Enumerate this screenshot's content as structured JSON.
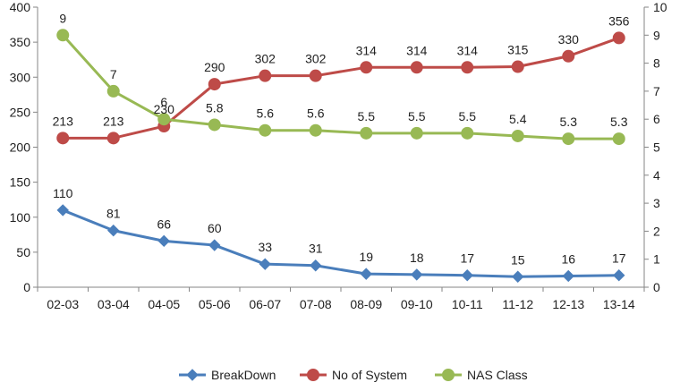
{
  "chart_data": {
    "type": "line",
    "title": "",
    "xlabel": "",
    "ylabel": "",
    "y2label": "",
    "categories": [
      "02-03",
      "03-04",
      "04-05",
      "05-06",
      "06-07",
      "07-08",
      "08-09",
      "09-10",
      "10-11",
      "11-12",
      "12-13",
      "13-14"
    ],
    "ylim": [
      0,
      400
    ],
    "yticks": [
      0,
      50,
      100,
      150,
      200,
      250,
      300,
      350,
      400
    ],
    "y2lim": [
      0,
      10
    ],
    "y2ticks": [
      0,
      1,
      2,
      3,
      4,
      5,
      6,
      7,
      8,
      9,
      10
    ],
    "grid": false,
    "legend_position": "bottom",
    "series": [
      {
        "name": "BreakDown",
        "axis": "left",
        "marker": "diamond",
        "color": "#4a7ebb",
        "values": [
          110,
          81,
          66,
          60,
          33,
          31,
          19,
          18,
          17,
          15,
          16,
          17
        ],
        "labels": [
          "110",
          "81",
          "66",
          "60",
          "33",
          "31",
          "19",
          "18",
          "17",
          "15",
          "16",
          "17"
        ]
      },
      {
        "name": "No of System",
        "axis": "left",
        "marker": "circle",
        "color": "#be4b48",
        "values": [
          213,
          213,
          230,
          290,
          302,
          302,
          314,
          314,
          314,
          315,
          330,
          356
        ],
        "labels": [
          "213",
          "213",
          "230",
          "290",
          "302",
          "302",
          "314",
          "314",
          "314",
          "315",
          "330",
          "356"
        ]
      },
      {
        "name": "NAS Class",
        "axis": "right",
        "marker": "circle",
        "color": "#98b954",
        "values": [
          9,
          7,
          6,
          5.8,
          5.6,
          5.6,
          5.5,
          5.5,
          5.5,
          5.4,
          5.3,
          5.3
        ],
        "labels": [
          "9",
          "7",
          "6",
          "5.8",
          "5.6",
          "5.6",
          "5.5",
          "5.5",
          "5.5",
          "5.4",
          "5.3",
          "5.3"
        ]
      }
    ]
  }
}
